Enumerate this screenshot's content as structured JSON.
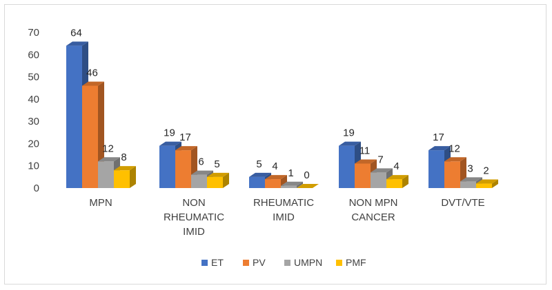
{
  "chart_data": {
    "type": "bar",
    "title": "",
    "xlabel": "",
    "ylabel": "",
    "ylim": [
      0,
      70
    ],
    "yticks": [
      0,
      10,
      20,
      30,
      40,
      50,
      60,
      70
    ],
    "grid": false,
    "legend_position": "bottom",
    "style": "3d-clustered-column",
    "categories": [
      [
        "MPN"
      ],
      [
        "NON",
        "RHEUMATIC",
        "IMID"
      ],
      [
        "RHEUMATIC",
        "IMID"
      ],
      [
        "NON MPN",
        "CANCER"
      ],
      [
        "DVT/VTE"
      ]
    ],
    "series": [
      {
        "name": "ET",
        "color": "#4472C4",
        "values": [
          64,
          19,
          5,
          19,
          17
        ]
      },
      {
        "name": "PV",
        "color": "#ED7D31",
        "values": [
          46,
          17,
          4,
          11,
          12
        ]
      },
      {
        "name": "UMPN",
        "color": "#A5A5A5",
        "values": [
          12,
          6,
          1,
          7,
          3
        ]
      },
      {
        "name": "PMF",
        "color": "#FFC000",
        "values": [
          8,
          5,
          0,
          4,
          2
        ]
      }
    ]
  }
}
